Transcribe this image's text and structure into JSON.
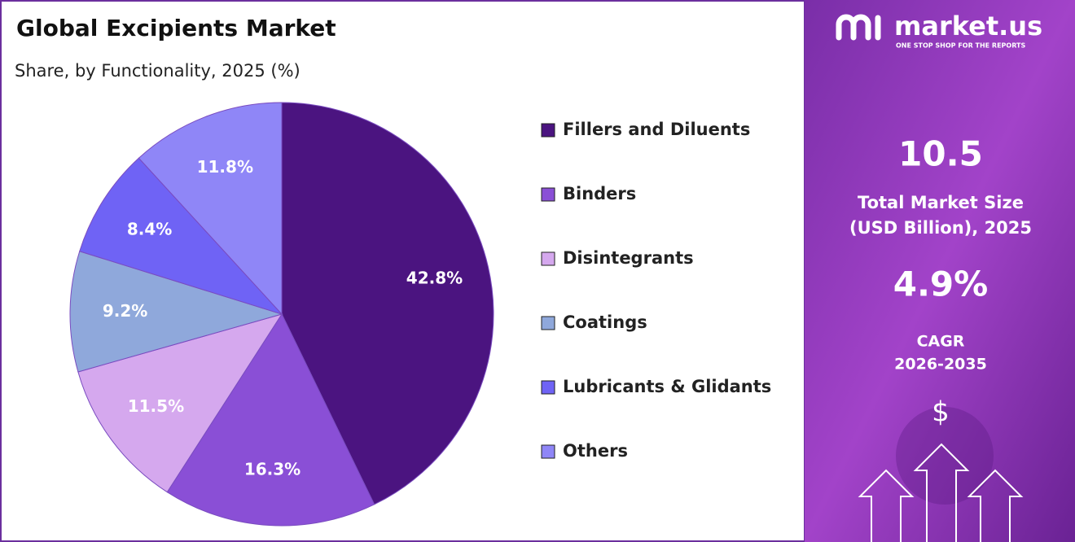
{
  "chart_data": {
    "type": "pie",
    "title": "Global Excipients Market",
    "subtitle": "Share, by Functionality, 2025 (%)",
    "categories": [
      "Fillers and Diluents",
      "Binders",
      "Disintegrants",
      "Coatings",
      "Lubricants & Glidants",
      "Others"
    ],
    "values": [
      42.8,
      16.3,
      11.5,
      9.2,
      8.4,
      11.8
    ],
    "value_labels": [
      "42.8%",
      "16.3%",
      "11.5%",
      "9.2%",
      "8.4%",
      "11.8%"
    ],
    "colors": [
      "#4b1480",
      "#8a4fd6",
      "#d5a8ee",
      "#8fa8db",
      "#6f63f5",
      "#8f86f7"
    ],
    "legend": "right"
  },
  "brand": {
    "name": "market.us",
    "tagline": "ONE STOP SHOP FOR THE REPORTS"
  },
  "highlights": {
    "market_size": "10.5",
    "market_size_label": [
      "Total Market Size",
      "(USD Billion), 2025"
    ],
    "cagr": "4.9%",
    "cagr_label": [
      "CAGR",
      "2026-2035"
    ],
    "icon": "$"
  }
}
